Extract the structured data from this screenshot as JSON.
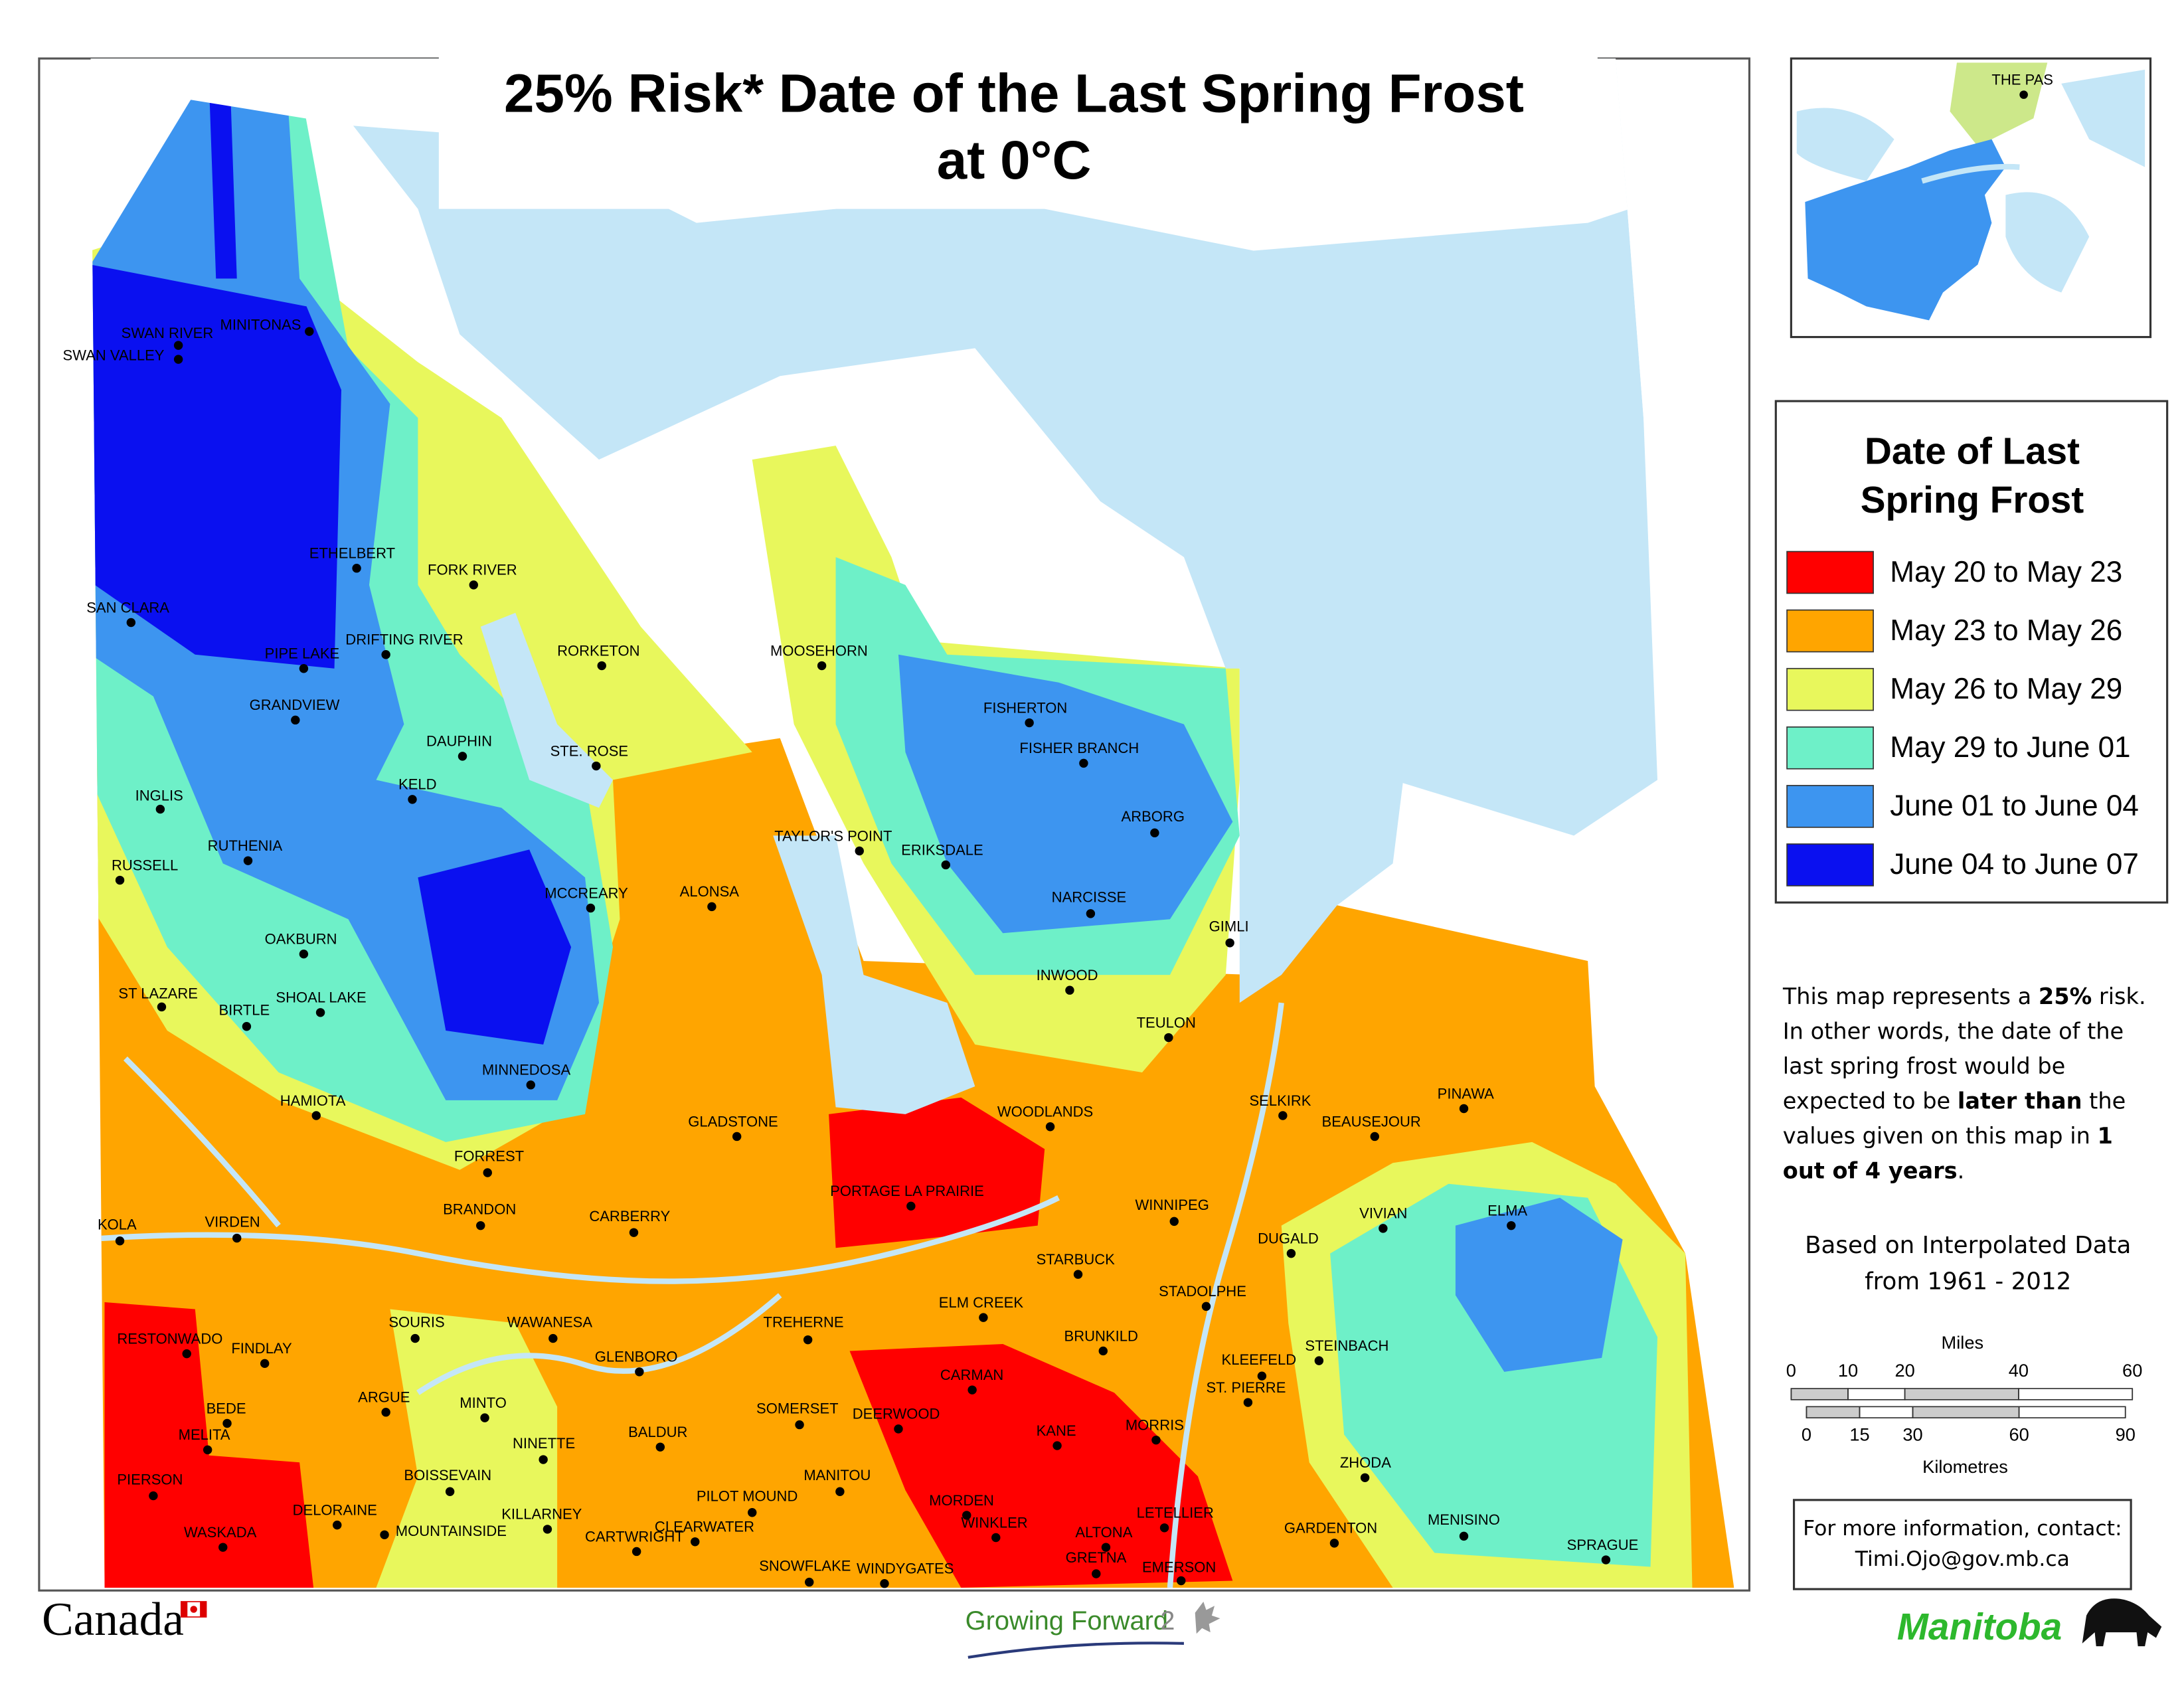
{
  "title": [
    "25% Risk* Date of the Last Spring Frost",
    "at 0°C"
  ],
  "places": [
    "SWAN RIVER",
    "MINITONAS",
    "SWAN VALLEY",
    "ETHELBERT",
    "FORK RIVER",
    "SAN CLARA",
    "PIPE LAKE",
    "DRIFTING RIVER",
    "RORKETON",
    "MOOSEHORN",
    "GRANDVIEW",
    "FISHERTON",
    "DAUPHIN",
    "STE. ROSE",
    "FISHER BRANCH",
    "KELD",
    "INGLIS",
    "TAYLOR'S POINT",
    "ERIKSDALE",
    "ARBORG",
    "RUTHENIA",
    "RUSSELL",
    "ALONSA",
    "MCCREARY",
    "NARCISSE",
    "GIMLI",
    "OAKBURN",
    "INWOOD",
    "ST LAZARE",
    "SHOAL LAKE",
    "BIRTLE",
    "TEULON",
    "MINNEDOSA",
    "HAMIOTA",
    "WOODLANDS",
    "SELKIRK",
    "PINAWA",
    "BEAUSEJOUR",
    "GLADSTONE",
    "FORREST",
    "PORTAGE LA PRAIRIE",
    "WINNIPEG",
    "BRANDON",
    "VIVIAN",
    "ELMA",
    "CARBERRY",
    "KOLA",
    "VIRDEN",
    "DUGALD",
    "STARBUCK",
    "STADOLPHE",
    "ELM CREEK",
    "SOURIS",
    "WAWANESA",
    "TREHERNE",
    "RESTONWADO",
    "FINDLAY",
    "BRUNKILD",
    "STEINBACH",
    "KLEEFELD",
    "GLENBORO",
    "CARMAN",
    "ARGUE",
    "ST. PIERRE",
    "BEDE",
    "MINTO",
    "SOMERSET",
    "DEERWOOD",
    "MORRIS",
    "BALDUR",
    "NINETTE",
    "KANE",
    "MELITA",
    "ZHODA",
    "MANITOU",
    "BOISSEVAIN",
    "PIERSON",
    "PILOT MOUND",
    "DELORAINE",
    "KILLARNEY",
    "MORDEN",
    "LETELLIER",
    "MENISINO",
    "WINKLER",
    "CLEARWATER",
    "GARDENTON",
    "WASKADA",
    "MOUNTAINSIDE",
    "ALTONA",
    "CARTWRIGHT",
    "SPRAGUE",
    "GRETNA",
    "SNOWFLAKE",
    "WINDYGATES",
    "EMERSON"
  ],
  "inset": {
    "place": "THE PAS"
  },
  "legend": {
    "title": [
      "Date of Last",
      "Spring Frost"
    ],
    "items": [
      {
        "label": "May 20 to May 23",
        "color": "#ff0000"
      },
      {
        "label": "May 23 to May 26",
        "color": "#ffa500"
      },
      {
        "label": "May 26 to May 29",
        "color": "#e8f75c"
      },
      {
        "label": "May 29 to June 01",
        "color": "#6ef0c8"
      },
      {
        "label": "June 01 to June 04",
        "color": "#3d95f0"
      },
      {
        "label": "June 04 to June 07",
        "color": "#0a10f0"
      }
    ]
  },
  "note": [
    {
      "text": "This map represents a "
    },
    {
      "text": "25%",
      "bold": true
    },
    {
      "text": " risk. In other words, the date of the last spring frost would be expected to be "
    },
    {
      "text": "later than",
      "bold": true
    },
    {
      "text": " the values given on this map in "
    },
    {
      "text": "1 out of 4 years",
      "bold": true
    },
    {
      "text": "."
    }
  ],
  "source": [
    "Based on Interpolated Data",
    "from 1961 - 2012"
  ],
  "scale_bar": {
    "miles_label": "Miles",
    "miles_ticks": [
      0,
      10,
      20,
      40,
      60
    ],
    "km_label": "Kilometres",
    "km_ticks": [
      0,
      15,
      30,
      60,
      90
    ]
  },
  "contact": [
    "For more information, contact:",
    "Timi.Ojo@gov.mb.ca"
  ],
  "logos": {
    "canada": "Canada",
    "growing_forward": "Growing Forward",
    "growing_forward_number": "2",
    "manitoba": "Manitoba"
  }
}
